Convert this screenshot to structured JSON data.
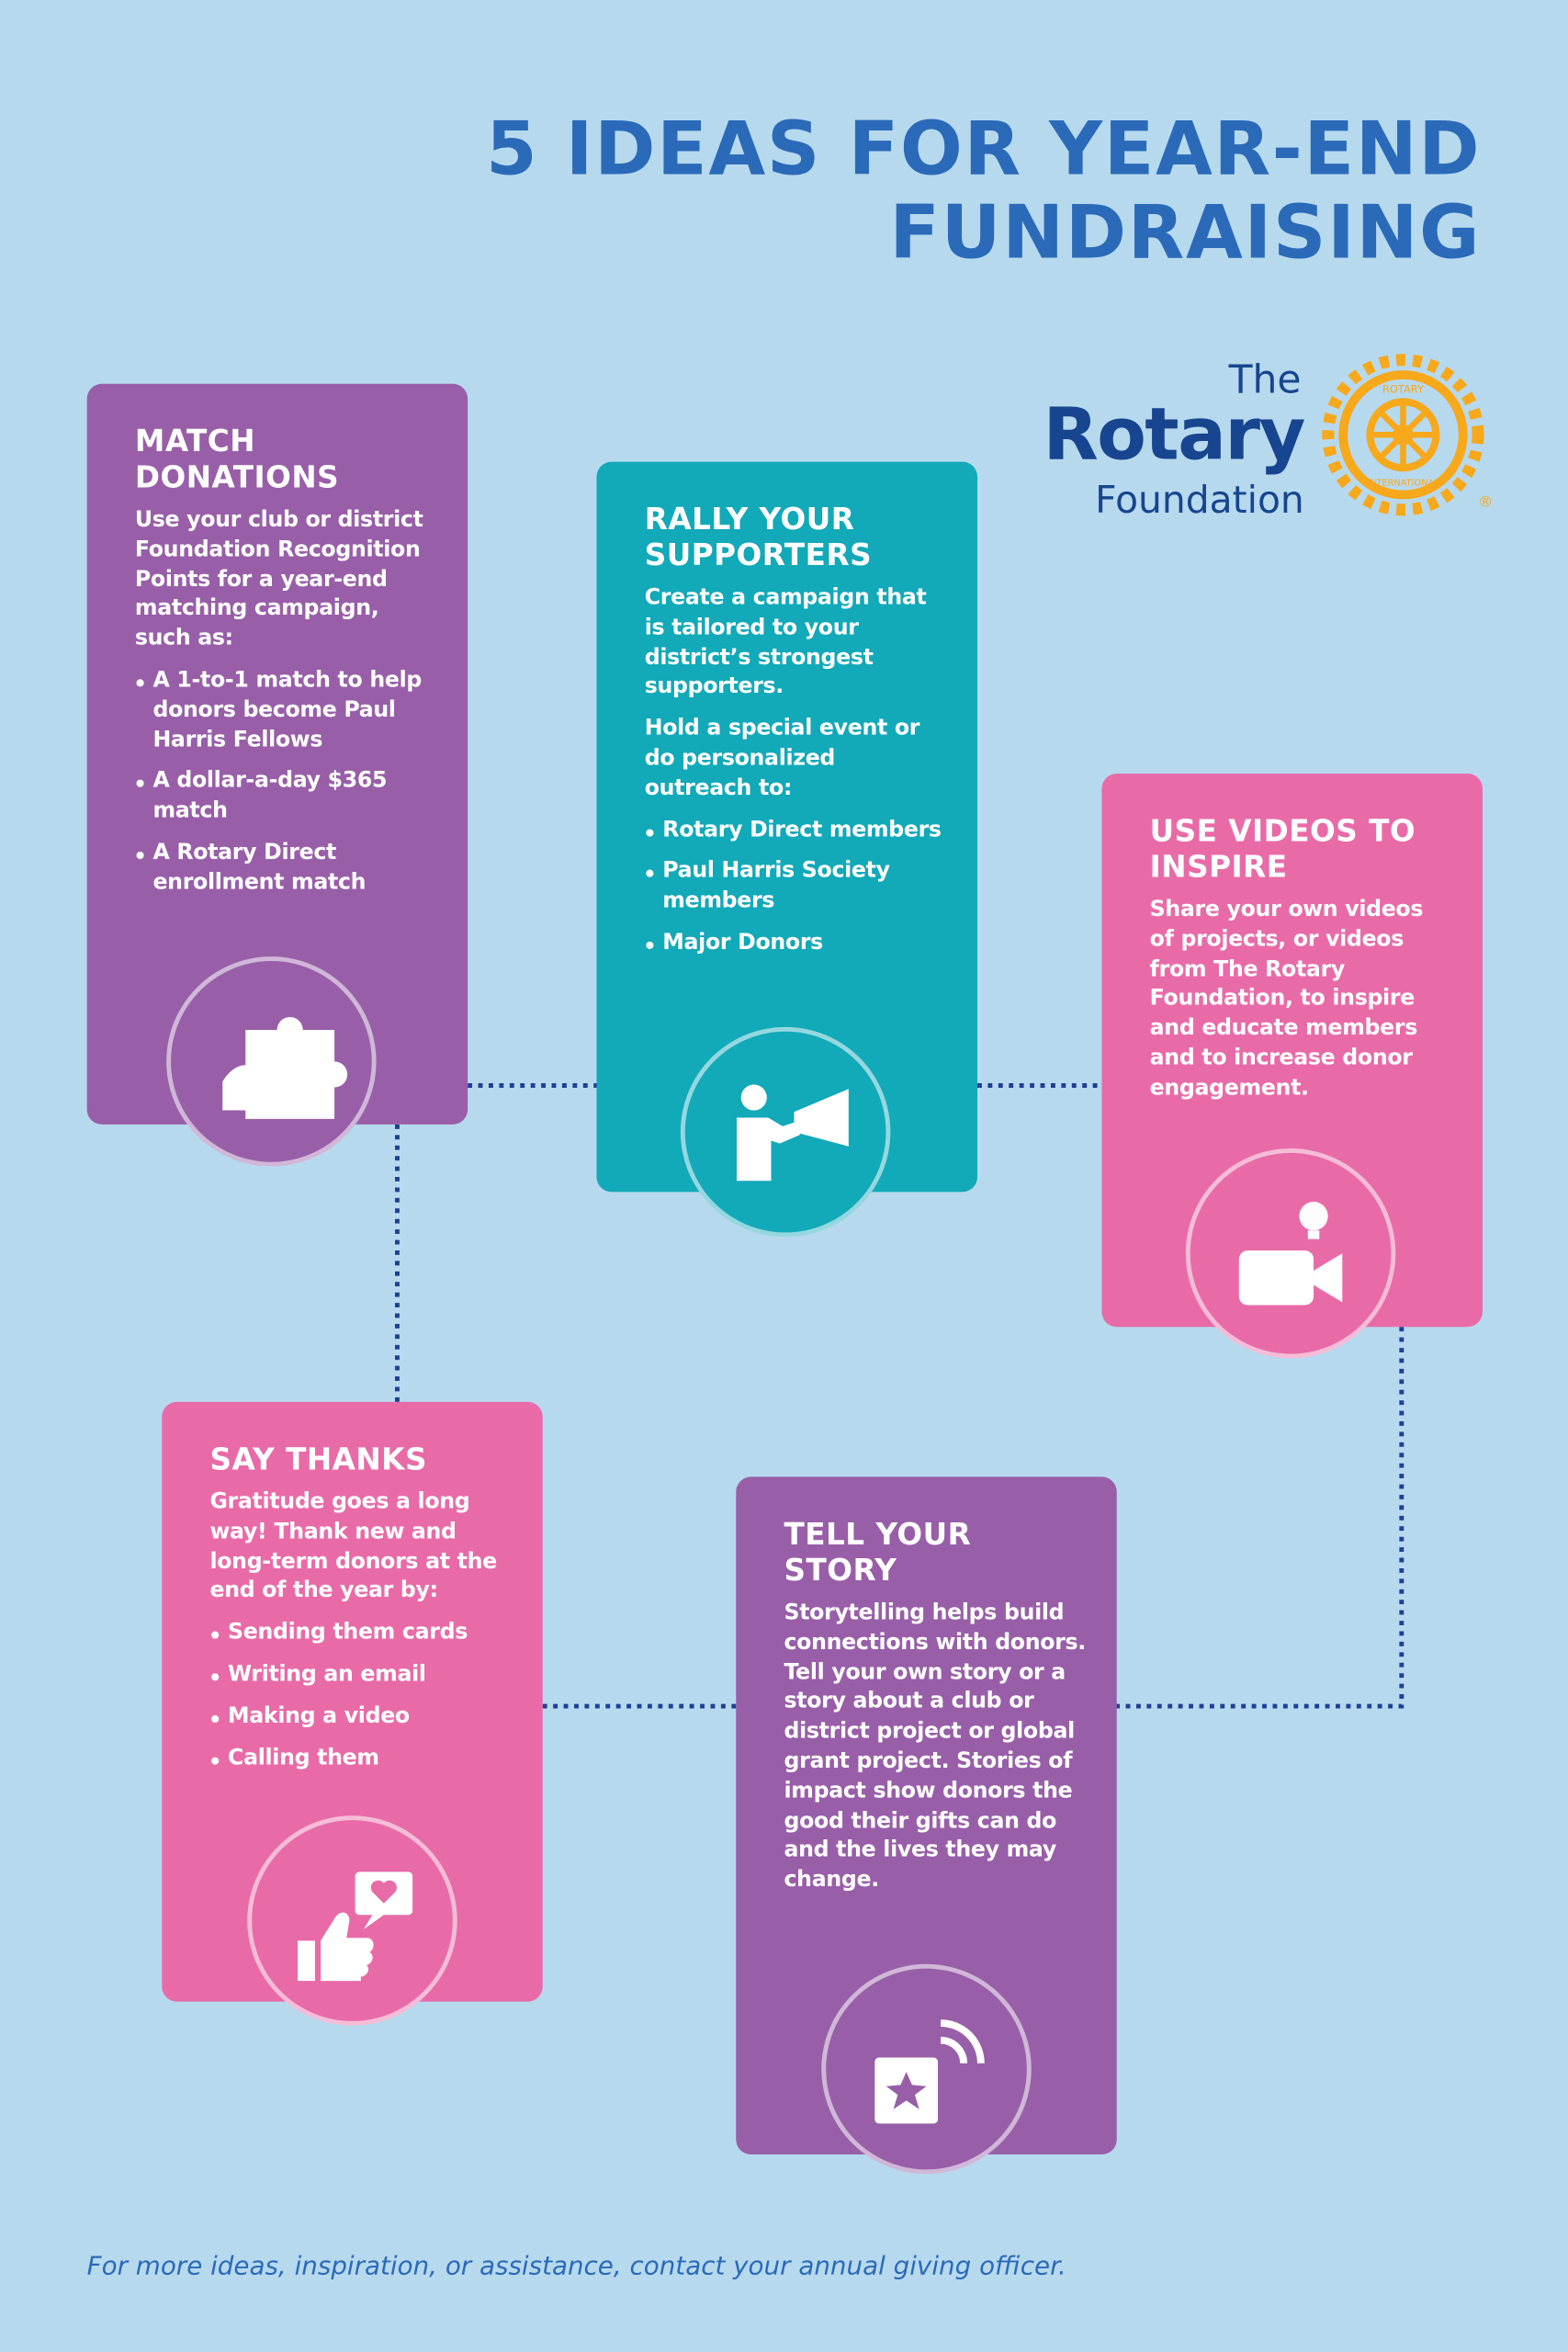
{
  "header": {
    "title_line1": "5 IDEAS FOR YEAR-END",
    "title_line2": "FUNDRAISING"
  },
  "logo": {
    "the": "The",
    "rotary": "Rotary",
    "foundation": "Foundation",
    "wheel_top": "ROTARY",
    "wheel_bottom": "INTERNATIONAL",
    "mark": "®"
  },
  "cards": [
    {
      "title": "MATCH DONATIONS",
      "paragraphs": [
        "Use your club or district Foundation Recognition Points for a year-end matching campaign, such as:"
      ],
      "bullets": [
        "A 1-to-1 match to help donors become Paul Harris Fellows",
        "A dollar-a-day $365 match",
        "A Rotary Direct enrollment match"
      ]
    },
    {
      "title": "RALLY YOUR SUPPORTERS",
      "paragraphs": [
        "Create a campaign that is tailored to your district’s strongest supporters.",
        "Hold a special event or do personalized outreach to:"
      ],
      "bullets": [
        "Rotary Direct members",
        "Paul Harris Society members",
        "Major Donors"
      ]
    },
    {
      "title": "USE VIDEOS TO INSPIRE",
      "paragraphs": [
        "Share your own videos of projects, or videos from The Rotary Foundation, to inspire and educate members and to increase donor engagement."
      ],
      "bullets": []
    },
    {
      "title": "SAY THANKS",
      "paragraphs": [
        "Gratitude goes a long way! Thank new and long-term donors at the end of the year by:"
      ],
      "bullets": [
        "Sending them cards",
        "Writing an email",
        "Making a video",
        "Calling them"
      ]
    },
    {
      "title": "TELL YOUR STORY",
      "paragraphs": [
        "Storytelling helps build connections with donors. Tell your own story or a story about a club or district project or global grant project. Stories of impact show donors the good their gifts can do and the lives they may change."
      ],
      "bullets": []
    }
  ],
  "footer": "For more ideas, inspiration, or assistance, contact your annual giving officer."
}
